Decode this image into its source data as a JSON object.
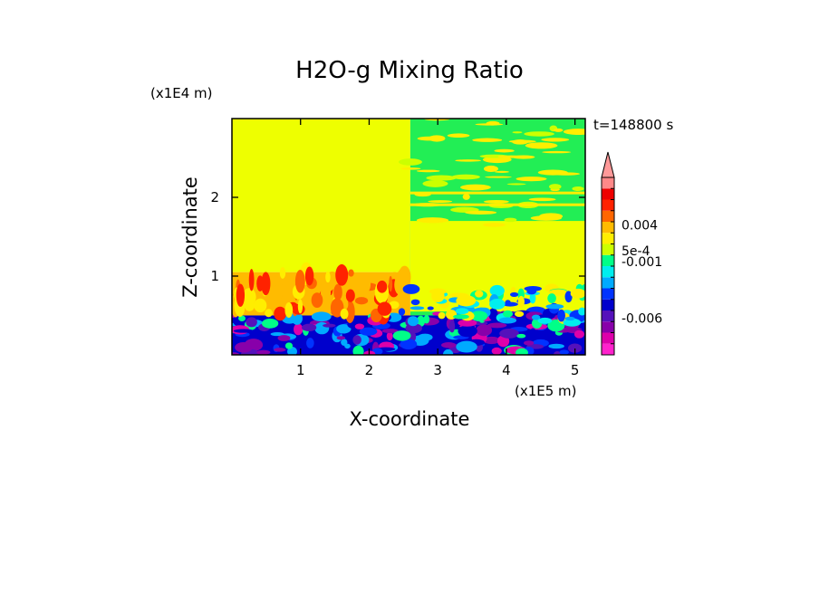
{
  "chart_data": {
    "type": "heatmap",
    "title": "H2O-g Mixing Ratio",
    "xlabel": "X-coordinate",
    "ylabel": "Z-coordinate",
    "x_unit": "(x1E5 m)",
    "y_unit": "(x1E4 m)",
    "time_label": "t=148800 s",
    "xlim": [
      0,
      5.15
    ],
    "ylim": [
      0,
      3.0
    ],
    "x_ticks": [
      {
        "value": 1,
        "label": "1"
      },
      {
        "value": 2,
        "label": "2"
      },
      {
        "value": 3,
        "label": "3"
      },
      {
        "value": 4,
        "label": "4"
      },
      {
        "value": 5,
        "label": "5"
      }
    ],
    "y_ticks": [
      {
        "value": 1,
        "label": "1"
      },
      {
        "value": 2,
        "label": "2"
      }
    ],
    "colorbar": {
      "colors": [
        "#ff22cc",
        "#dd00aa",
        "#8800aa",
        "#5511bb",
        "#0000cc",
        "#0033ff",
        "#00aaff",
        "#00eeee",
        "#00ff88",
        "#ccff00",
        "#ffee00",
        "#ffbb00",
        "#ff6600",
        "#ff2200",
        "#ee0000",
        "#ff8888"
      ],
      "top_color": "#ff9999",
      "labels": [
        {
          "level": 11.7,
          "text": "0.004"
        },
        {
          "level": 9.4,
          "text": "5e-4"
        },
        {
          "level": 8.4,
          "text": "-0.001"
        },
        {
          "level": 3.3,
          "text": "-0.006"
        }
      ]
    },
    "regions": [
      {
        "x": [
          0,
          2.6
        ],
        "z": [
          1.05,
          3.0
        ],
        "color": "#eeff00"
      },
      {
        "x": [
          2.6,
          5.15
        ],
        "z": [
          0,
          3.0
        ],
        "color": "#22ee55"
      },
      {
        "x": [
          2.6,
          5.15
        ],
        "z": [
          0.55,
          1.7
        ],
        "color": "#eeff00"
      },
      {
        "x": [
          0,
          2.6
        ],
        "z": [
          0.5,
          1.05
        ],
        "color": "#ffbb00"
      },
      {
        "x": [
          0,
          5.15
        ],
        "z": [
          0,
          0.5
        ],
        "color": "#0000cc"
      }
    ]
  }
}
